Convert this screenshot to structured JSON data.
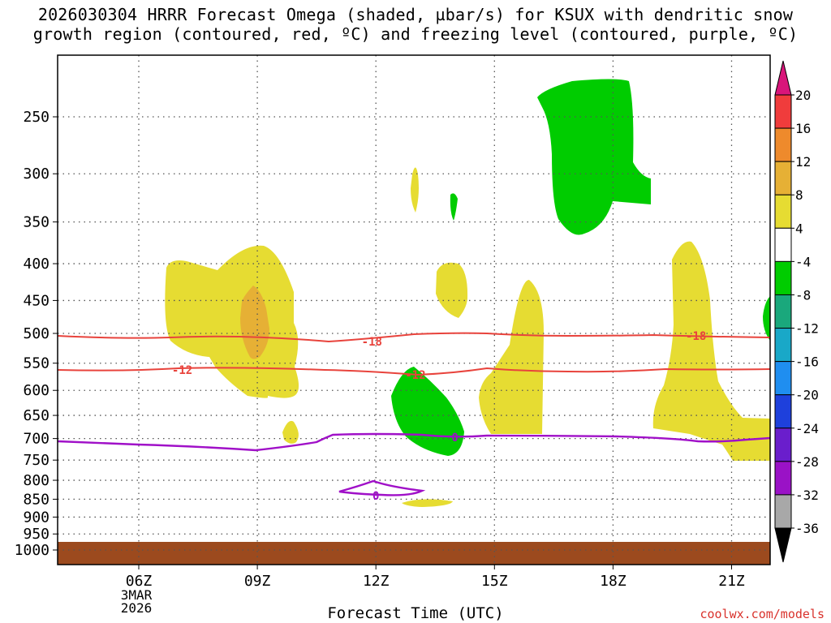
{
  "title_line1": "2026030304 HRRR Forecast Omega (shaded, µbar/s) for KSUX with dendritic snow",
  "title_line2": "growth region (contoured, red, ºC) and freezing level (contoured, purple, ºC)",
  "credit": "coolwx.com/models",
  "chart_data": {
    "type": "contour",
    "xlabel": "Forecast Time (UTC)",
    "ylabel": "",
    "y_scale": "log-pressure",
    "ylim_hPa": [
      1050,
      200
    ],
    "xlim_hours_from_04Z": [
      0,
      18
    ],
    "y_ticks_hPa": [
      250,
      300,
      350,
      400,
      450,
      500,
      550,
      600,
      650,
      700,
      750,
      800,
      850,
      900,
      950,
      1000
    ],
    "x_ticks": [
      {
        "hour": 2,
        "label": "06Z",
        "sub": [
          "3MAR",
          "2026"
        ]
      },
      {
        "hour": 5,
        "label": "09Z"
      },
      {
        "hour": 8,
        "label": "12Z"
      },
      {
        "hour": 11,
        "label": "15Z"
      },
      {
        "hour": 14,
        "label": "18Z"
      },
      {
        "hour": 17,
        "label": "21Z"
      }
    ],
    "grid": true,
    "colorbar": {
      "levels": [
        "20",
        "16",
        "12",
        "8",
        "4",
        "-4",
        "-8",
        "-12",
        "-16",
        "-20",
        "-24",
        "-28",
        "-32",
        "-36"
      ],
      "colors": [
        "#f03c3c",
        "#ee8a2c",
        "#e6b035",
        "#e6dc32",
        "#ffffff",
        "#00cc00",
        "#1aa87c",
        "#19a8c8",
        "#1f8ef0",
        "#1e40dc",
        "#6a1ecc",
        "#9a12c6",
        "#a8a8a8"
      ],
      "top_arrow_color": "#d9157a",
      "bottom_arrow_color": "#000000"
    },
    "omega_regions": [
      {
        "level": "4 to 8",
        "sign": "positive",
        "times": "06Z-09Z",
        "p_range_hPa": [
          395,
          610
        ]
      },
      {
        "level": "8 to 12",
        "sign": "positive",
        "times": "09Z",
        "p_range_hPa": [
          430,
          545
        ]
      },
      {
        "level": "-4 to -8",
        "sign": "negative",
        "times": "17Z-19Z",
        "p_range_hPa": [
          220,
          370
        ]
      },
      {
        "level": "-4 to -8",
        "sign": "negative",
        "times": "12Z-14Z",
        "p_range_hPa": [
          575,
          745
        ]
      },
      {
        "level": "4 to 8",
        "sign": "positive",
        "times": "19Z-22Z",
        "p_range_hPa": [
          375,
          745
        ]
      }
    ],
    "contours": [
      {
        "name": "-18",
        "color": "#e8433c",
        "label_x_hours": [
          7.9,
          16.1
        ]
      },
      {
        "name": "-12",
        "color": "#e8433c",
        "label_x_hours": [
          3.1,
          9.0
        ]
      },
      {
        "name": "0",
        "color": "#a010c8",
        "label_x_hours": [
          10.0,
          8.0
        ]
      }
    ],
    "surface_color": "#9c4a1e"
  }
}
